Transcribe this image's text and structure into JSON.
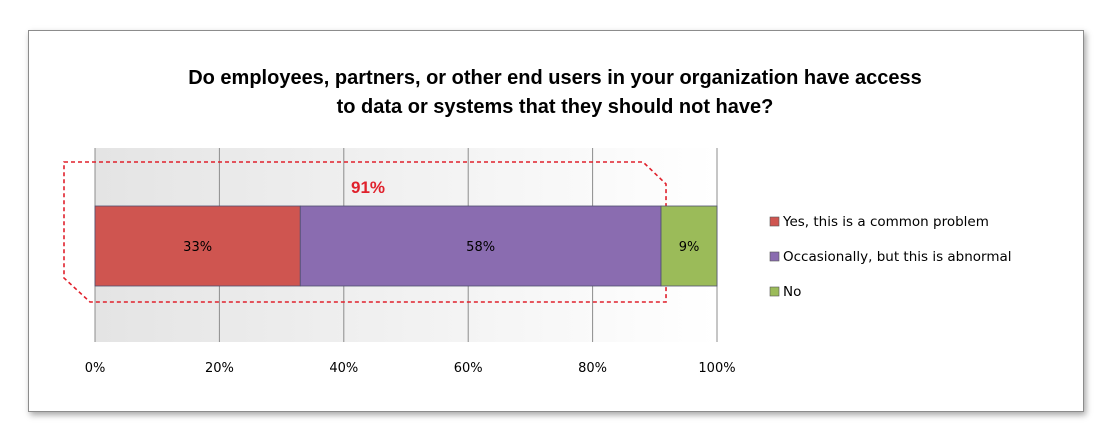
{
  "chart_data": {
    "type": "bar",
    "orientation": "horizontal",
    "stacked": true,
    "title_lines": [
      "Do employees, partners, or other end users in your organization have access",
      "to data or systems that they should not have?"
    ],
    "series": [
      {
        "name": "Yes, this is a common problem",
        "value": 33,
        "label": "33%",
        "color": "#cf5550"
      },
      {
        "name": "Occasionally, but this is abnormal",
        "value": 58,
        "label": "58%",
        "color": "#8a6cb0"
      },
      {
        "name": "No",
        "value": 9,
        "label": "9%",
        "color": "#9bbb59"
      }
    ],
    "xlim": [
      0,
      100
    ],
    "x_ticks": [
      "0%",
      "20%",
      "40%",
      "60%",
      "80%",
      "100%"
    ],
    "grid": true,
    "legend_position": "right",
    "annotation": {
      "text": "91%",
      "color": "#e0212c",
      "spans_series": [
        0,
        1
      ]
    }
  }
}
